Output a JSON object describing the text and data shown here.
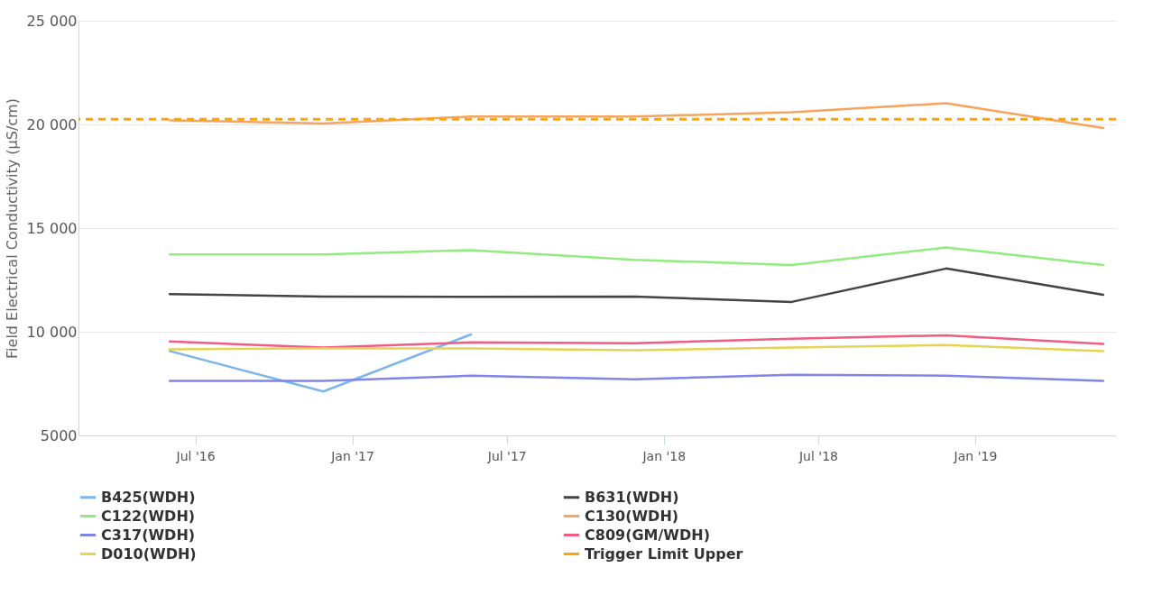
{
  "chart_data": {
    "type": "line",
    "ylabel": "Field Electrical Conductivity (µS/cm)",
    "x": [
      "2016-06-01",
      "2016-11-28",
      "2017-05-20",
      "2017-11-28",
      "2018-05-31",
      "2018-11-28",
      "2019-05-31"
    ],
    "xlim": [
      "2016-02-15",
      "2019-06-15"
    ],
    "xticks": [
      {
        "value": "2016-07-01",
        "label": "Jul '16"
      },
      {
        "value": "2017-01-01",
        "label": "Jan '17"
      },
      {
        "value": "2017-07-01",
        "label": "Jul '17"
      },
      {
        "value": "2018-01-01",
        "label": "Jan '18"
      },
      {
        "value": "2018-07-01",
        "label": "Jul '18"
      },
      {
        "value": "2019-01-01",
        "label": "Jan '19"
      }
    ],
    "ylim": [
      5000,
      25000
    ],
    "yticks": [
      5000,
      {
        "value": 10000,
        "label": "10 000"
      },
      {
        "value": 15000,
        "label": "15 000"
      },
      {
        "value": 20000,
        "label": "20 000"
      },
      {
        "value": 25000,
        "label": "25 000"
      }
    ],
    "series": [
      {
        "name": "B425(WDH)",
        "color": "#7cb5ec",
        "values": [
          9070,
          7120,
          9870,
          null,
          null,
          null,
          null
        ]
      },
      {
        "name": "B631(WDH)",
        "color": "#434348",
        "values": [
          11820,
          11700,
          11680,
          11700,
          11440,
          13050,
          11780
        ]
      },
      {
        "name": "C122(WDH)",
        "color": "#90ed7d",
        "values": [
          13730,
          13730,
          13940,
          13470,
          13220,
          14070,
          13220
        ]
      },
      {
        "name": "C130(WDH)",
        "color": "#f7a35c",
        "values": [
          20200,
          20040,
          20380,
          20380,
          20590,
          21020,
          19830
        ]
      },
      {
        "name": "C317(WDH)",
        "color": "#8085e9",
        "values": [
          7630,
          7630,
          7880,
          7710,
          7920,
          7880,
          7630
        ]
      },
      {
        "name": "C809(GM/WDH)",
        "color": "#f15c80",
        "values": [
          9530,
          9240,
          9490,
          9450,
          9660,
          9830,
          9410
        ]
      },
      {
        "name": "D010(WDH)",
        "color": "#e4d354",
        "values": [
          9150,
          9200,
          9200,
          9110,
          9240,
          9360,
          9070
        ]
      }
    ],
    "ref_lines": [
      {
        "axis": "y",
        "value": 20250,
        "label": "Trigger Limit Upper",
        "color": "#ffa500",
        "line_style": "dashed"
      }
    ],
    "grid": "y",
    "legend": "bottom",
    "line_style": "solid"
  }
}
